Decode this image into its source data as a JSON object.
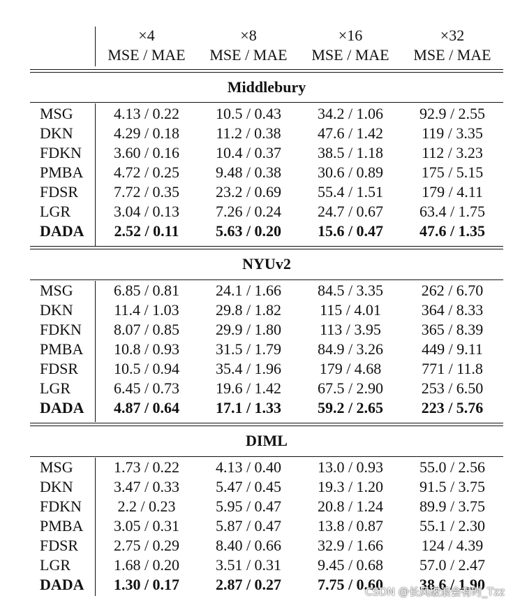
{
  "header": {
    "scales": [
      "×4",
      "×8",
      "×16",
      "×32"
    ],
    "metric": "MSE / MAE"
  },
  "sections": [
    {
      "title": "Middlebury",
      "rows": [
        {
          "method": "MSG",
          "values": [
            "4.13 / 0.22",
            "10.5 / 0.43",
            "34.2 / 1.06",
            "92.9 / 2.55"
          ]
        },
        {
          "method": "DKN",
          "values": [
            "4.29 / 0.18",
            "11.2 / 0.38",
            "47.6 / 1.42",
            "119 / 3.35"
          ]
        },
        {
          "method": "FDKN",
          "values": [
            "3.60 / 0.16",
            "10.4 / 0.37",
            "38.5 / 1.18",
            "112 / 3.23"
          ]
        },
        {
          "method": "PMBA",
          "values": [
            "4.72 / 0.25",
            "9.48 / 0.38",
            "30.6 / 0.89",
            "175 / 5.15"
          ]
        },
        {
          "method": "FDSR",
          "values": [
            "7.72 / 0.35",
            "23.2 / 0.69",
            "55.4 / 1.51",
            "179 / 4.11"
          ]
        },
        {
          "method": "LGR",
          "values": [
            "3.04 / 0.13",
            "7.26 / 0.24",
            "24.7 / 0.67",
            "63.4 / 1.75"
          ]
        },
        {
          "method": "DADA",
          "values": [
            "2.52 / 0.11",
            "5.63 / 0.20",
            "15.6 / 0.47",
            "47.6 / 1.35"
          ],
          "bold": true
        }
      ]
    },
    {
      "title": "NYUv2",
      "rows": [
        {
          "method": "MSG",
          "values": [
            "6.85 / 0.81",
            "24.1 / 1.66",
            "84.5 / 3.35",
            "262 / 6.70"
          ]
        },
        {
          "method": "DKN",
          "values": [
            "11.4 / 1.03",
            "29.8 / 1.82",
            "115 / 4.01",
            "364 / 8.33"
          ]
        },
        {
          "method": "FDKN",
          "values": [
            "8.07 / 0.85",
            "29.9 / 1.80",
            "113 / 3.95",
            "365 / 8.39"
          ]
        },
        {
          "method": "PMBA",
          "values": [
            "10.8 / 0.93",
            "31.5 / 1.79",
            "84.9 / 3.26",
            "449 / 9.11"
          ]
        },
        {
          "method": "FDSR",
          "values": [
            "10.5 / 0.94",
            "35.4 / 1.96",
            "179 / 4.68",
            "771 / 11.8"
          ]
        },
        {
          "method": "LGR",
          "values": [
            "6.45 / 0.73",
            "19.6 / 1.42",
            "67.5 / 2.90",
            "253 / 6.50"
          ]
        },
        {
          "method": "DADA",
          "values": [
            "4.87 / 0.64",
            "17.1 / 1.33",
            "59.2 / 2.65",
            "223 / 5.76"
          ],
          "bold": true
        }
      ]
    },
    {
      "title": "DIML",
      "rows": [
        {
          "method": "MSG",
          "values": [
            "1.73 / 0.22",
            "4.13 / 0.40",
            "13.0 / 0.93",
            "55.0 / 2.56"
          ]
        },
        {
          "method": "DKN",
          "values": [
            "3.47 / 0.33",
            "5.47 / 0.45",
            "19.3 / 1.20",
            "91.5 / 3.75"
          ]
        },
        {
          "method": "FDKN",
          "values": [
            "2.2 / 0.23",
            "5.95 / 0.47",
            "20.8 / 1.24",
            "89.9 / 3.75"
          ]
        },
        {
          "method": "PMBA",
          "values": [
            "3.05 / 0.31",
            "5.87 / 0.47",
            "13.8 / 0.87",
            "55.1 / 2.30"
          ]
        },
        {
          "method": "FDSR",
          "values": [
            "2.75 / 0.29",
            "8.40 / 0.66",
            "32.9 / 1.66",
            "124 / 4.39"
          ]
        },
        {
          "method": "LGR",
          "values": [
            "1.68 / 0.20",
            "3.51 / 0.31",
            "9.45 / 0.68",
            "57.0 / 2.47"
          ]
        },
        {
          "method": "DADA",
          "values": [
            "1.30 / 0.17",
            "2.87 / 0.27",
            "7.75 / 0.60",
            "38.6 / 1.90"
          ],
          "bold": true
        }
      ]
    }
  ],
  "watermark": "CSDN @长风破浪会有时_Tzz"
}
